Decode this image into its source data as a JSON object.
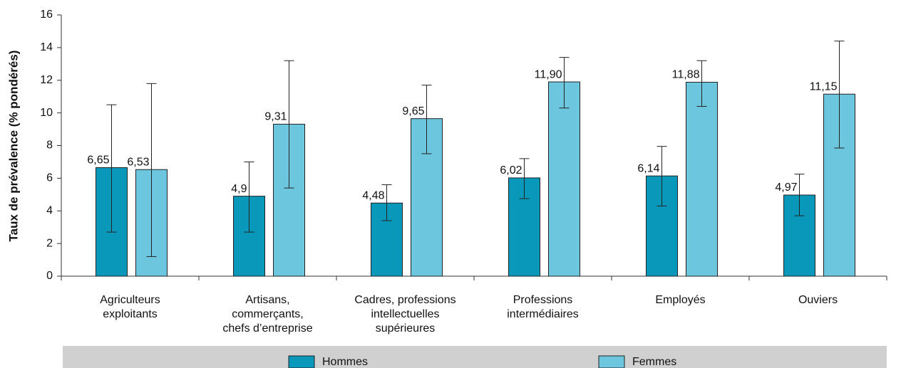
{
  "chart_data": {
    "type": "bar",
    "y_label": "Taux de prévalence (% pondérés)",
    "categories": [
      [
        "Agriculteurs",
        "exploitants"
      ],
      [
        "Artisans,",
        "commerçants,",
        "chefs d’entreprise"
      ],
      [
        "Cadres, professions",
        "intellectuelles",
        "supérieures"
      ],
      [
        "Professions",
        "intermédiaires"
      ],
      [
        "Employés"
      ],
      [
        "Ouviers"
      ]
    ],
    "series": [
      {
        "name": "Hommes",
        "color": "#0a98ba",
        "values": [
          6.65,
          4.9,
          4.48,
          6.02,
          6.14,
          4.97
        ],
        "value_labels": [
          "6,65",
          "4,9",
          "4,48",
          "6,02",
          "6,14",
          "4,97"
        ],
        "ci_low": [
          2.7,
          2.7,
          3.4,
          4.75,
          4.3,
          3.7
        ],
        "ci_high": [
          10.5,
          7.0,
          5.6,
          7.2,
          7.95,
          6.25
        ]
      },
      {
        "name": "Femmes",
        "color": "#6cc6de",
        "values": [
          6.53,
          9.31,
          9.65,
          11.9,
          11.88,
          11.15
        ],
        "value_labels": [
          "6,53",
          "9,31",
          "9,65",
          "11,90",
          "11,88",
          "11,15"
        ],
        "ci_low": [
          1.2,
          5.4,
          7.5,
          10.3,
          10.4,
          7.85
        ],
        "ci_high": [
          11.8,
          13.2,
          11.7,
          13.4,
          13.2,
          14.4
        ]
      }
    ],
    "ylim": [
      0,
      16
    ],
    "yticks": [
      0,
      2,
      4,
      6,
      8,
      10,
      12,
      14,
      16
    ],
    "legend": "bottom"
  }
}
